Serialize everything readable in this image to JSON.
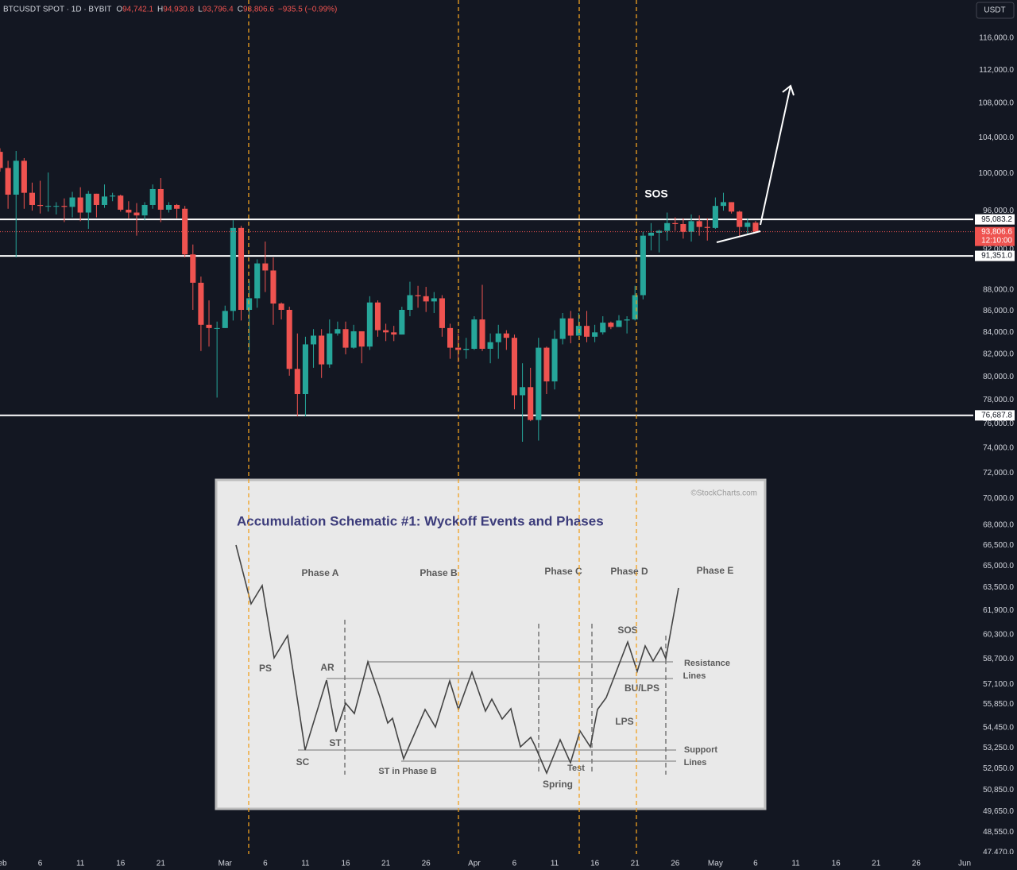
{
  "chart_data": {
    "type": "candlestick",
    "header": {
      "symbol": "BTCUSDT SPOT · 1D · BYBIT",
      "ohlc": [
        {
          "key": "O",
          "text": "94,742.1"
        },
        {
          "key": "H",
          "text": "94,930.8"
        },
        {
          "key": "L",
          "text": "93,796.4"
        },
        {
          "key": "C",
          "text": "93,806.6"
        }
      ],
      "change": "−935.5 (−0.99%)"
    },
    "currency": "USDT",
    "annotation": "SOS",
    "x": [
      "Feb 1",
      "Feb 2",
      "Feb 3",
      "Feb 4",
      "Feb 5",
      "Feb 6",
      "Feb 7",
      "Feb 8",
      "Feb 9",
      "Feb 10",
      "Feb 11",
      "Feb 12",
      "Feb 13",
      "Feb 14",
      "Feb 15",
      "Feb 16",
      "Feb 17",
      "Feb 18",
      "Feb 19",
      "Feb 20",
      "Feb 21",
      "Feb 22",
      "Feb 23",
      "Feb 24",
      "Feb 25",
      "Feb 26",
      "Feb 27",
      "Feb 28",
      "Mar 1",
      "Mar 2",
      "Mar 3",
      "Mar 4",
      "Mar 5",
      "Mar 6",
      "Mar 7",
      "Mar 8",
      "Mar 9",
      "Mar 10",
      "Mar 11",
      "Mar 12",
      "Mar 13",
      "Mar 14",
      "Mar 15",
      "Mar 16",
      "Mar 17",
      "Mar 18",
      "Mar 19",
      "Mar 20",
      "Mar 21",
      "Mar 22",
      "Mar 23",
      "Mar 24",
      "Mar 25",
      "Mar 26",
      "Mar 27",
      "Mar 28",
      "Mar 29",
      "Mar 30",
      "Mar 31",
      "Apr 1",
      "Apr 2",
      "Apr 3",
      "Apr 4",
      "Apr 5",
      "Apr 6",
      "Apr 7",
      "Apr 8",
      "Apr 9",
      "Apr 10",
      "Apr 11",
      "Apr 12",
      "Apr 13",
      "Apr 14",
      "Apr 15",
      "Apr 16",
      "Apr 17",
      "Apr 18",
      "Apr 19",
      "Apr 20",
      "Apr 21",
      "Apr 22",
      "Apr 23",
      "Apr 24",
      "Apr 25",
      "Apr 26",
      "Apr 27",
      "Apr 28",
      "Apr 29",
      "Apr 30",
      "May 1",
      "May 2",
      "May 3",
      "May 4",
      "May 5",
      "May 6"
    ],
    "open": [
      102400,
      100600,
      97700,
      101400,
      97900,
      96600,
      96500,
      96500,
      96500,
      96400,
      97400,
      95800,
      97800,
      96600,
      97500,
      97600,
      96100,
      95800,
      95500,
      96600,
      98300,
      96100,
      96600,
      96200,
      91500,
      88700,
      84700,
      84400,
      84400,
      86000,
      94200,
      86100,
      87200,
      90600,
      89900,
      86700,
      86100,
      80700,
      78500,
      82900,
      83700,
      81100,
      83900,
      84300,
      82600,
      84100,
      82700,
      86800,
      84200,
      84000,
      83800,
      86100,
      87500,
      87400,
      86900,
      87200,
      84400,
      82600,
      82400,
      82500,
      85200,
      82500,
      83100,
      83900,
      83500,
      78400,
      79100,
      76300,
      82600,
      79600,
      83400,
      85300,
      83700,
      84600,
      83600,
      84000,
      84900,
      84500,
      85100,
      85200,
      87500,
      93400,
      93700,
      93900,
      94700,
      94600,
      93800,
      94900,
      94300,
      94200,
      96500,
      96900,
      95900,
      94300,
      94742.1
    ],
    "high": [
      102800,
      101400,
      102500,
      101700,
      99000,
      99200,
      100100,
      96900,
      97300,
      98000,
      98500,
      98100,
      97800,
      98800,
      97900,
      97700,
      97000,
      96800,
      96900,
      98800,
      99500,
      96900,
      96700,
      96500,
      92500,
      89300,
      87000,
      85000,
      86500,
      95000,
      94400,
      88900,
      91000,
      92800,
      91200,
      86800,
      86400,
      83900,
      83600,
      84300,
      84300,
      85200,
      85000,
      85000,
      84700,
      84100,
      87400,
      87000,
      84800,
      84600,
      86400,
      88800,
      88400,
      88300,
      87800,
      87500,
      84800,
      83900,
      83500,
      85500,
      88500,
      83900,
      84700,
      84200,
      83800,
      81200,
      80800,
      83500,
      82700,
      84200,
      85800,
      86000,
      85800,
      86000,
      84700,
      85500,
      85000,
      85600,
      85500,
      88400,
      93800,
      94700,
      94000,
      95800,
      95300,
      95200,
      95600,
      95500,
      95200,
      97400,
      97900,
      96900,
      96000,
      95200,
      94930.8
    ],
    "low": [
      100200,
      96200,
      91200,
      96200,
      96000,
      95700,
      95900,
      95600,
      94800,
      95300,
      94900,
      94100,
      95300,
      96300,
      97000,
      95900,
      95200,
      93400,
      95000,
      96200,
      94800,
      95800,
      95200,
      91200,
      86100,
      82300,
      82700,
      78200,
      84400,
      85100,
      85100,
      82200,
      86300,
      87800,
      84700,
      85200,
      80100,
      76600,
      76600,
      80800,
      79900,
      80800,
      83700,
      82000,
      82500,
      81200,
      82400,
      83600,
      83200,
      83200,
      83800,
      85500,
      86300,
      85900,
      85800,
      83600,
      81600,
      81300,
      81600,
      82400,
      82300,
      81200,
      81600,
      82400,
      77200,
      74500,
      76200,
      74600,
      78500,
      78900,
      82900,
      83000,
      83700,
      83100,
      83100,
      83800,
      84300,
      84500,
      83900,
      85100,
      87100,
      91900,
      91700,
      92900,
      93900,
      93100,
      92800,
      93400,
      92900,
      94100,
      96000,
      95700,
      93300,
      93600,
      93796.4
    ],
    "close": [
      100600,
      97700,
      101400,
      97900,
      96600,
      96500,
      96500,
      96500,
      96400,
      97400,
      95800,
      97800,
      96600,
      97500,
      97600,
      96100,
      95800,
      95500,
      96600,
      98300,
      96100,
      96600,
      96200,
      91500,
      88700,
      84700,
      84400,
      84400,
      86000,
      94200,
      86100,
      87200,
      90600,
      89900,
      86700,
      86100,
      80700,
      78500,
      82900,
      83700,
      81100,
      83900,
      84300,
      82600,
      84100,
      82700,
      86800,
      84200,
      84000,
      83800,
      86100,
      87500,
      87400,
      86900,
      87200,
      84400,
      82600,
      82400,
      82500,
      85200,
      82500,
      83100,
      83900,
      83500,
      78400,
      79100,
      76300,
      82600,
      79600,
      83400,
      85300,
      83700,
      84600,
      83600,
      84000,
      84900,
      84500,
      85100,
      85200,
      87500,
      93400,
      93700,
      93900,
      94700,
      94600,
      93800,
      94900,
      94300,
      94200,
      96500,
      96900,
      95900,
      94300,
      94742.1,
      93806.6
    ],
    "up_color": "#26a69a",
    "down_color": "#ef5350",
    "log_scale": true,
    "grid": false,
    "xlim": [
      "Feb 1",
      "Jun 1"
    ],
    "xticks": [
      {
        "value": "Feb 1",
        "label": "Feb"
      },
      {
        "value": "Feb 6",
        "label": "6"
      },
      {
        "value": "Feb 11",
        "label": "11"
      },
      {
        "value": "Feb 16",
        "label": "16"
      },
      {
        "value": "Feb 21",
        "label": "21"
      },
      {
        "value": "Mar 1",
        "label": "Mar"
      },
      {
        "value": "Mar 6",
        "label": "6"
      },
      {
        "value": "Mar 11",
        "label": "11"
      },
      {
        "value": "Mar 16",
        "label": "16"
      },
      {
        "value": "Mar 21",
        "label": "21"
      },
      {
        "value": "Mar 26",
        "label": "26"
      },
      {
        "value": "Apr 1",
        "label": "Apr"
      },
      {
        "value": "Apr 6",
        "label": "6"
      },
      {
        "value": "Apr 11",
        "label": "11"
      },
      {
        "value": "Apr 16",
        "label": "16"
      },
      {
        "value": "Apr 21",
        "label": "21"
      },
      {
        "value": "Apr 26",
        "label": "26"
      },
      {
        "value": "May 1",
        "label": "May"
      },
      {
        "value": "May 6",
        "label": "6"
      },
      {
        "value": "May 11",
        "label": "11"
      },
      {
        "value": "May 16",
        "label": "16"
      },
      {
        "value": "May 21",
        "label": "21"
      },
      {
        "value": "May 26",
        "label": "26"
      },
      {
        "value": "Jun 1",
        "label": "Jun"
      }
    ],
    "ylim": [
      47390,
      120960
    ],
    "yticks": [
      {
        "value": 116000,
        "label": "116,000.0"
      },
      {
        "value": 112000,
        "label": "112,000.0"
      },
      {
        "value": 108000,
        "label": "108,000.0"
      },
      {
        "value": 104000,
        "label": "104,000.0"
      },
      {
        "value": 100000,
        "label": "100,000.0"
      },
      {
        "value": 96000,
        "label": "96,000.0"
      },
      {
        "value": 92000,
        "label": "92,000.0"
      },
      {
        "value": 88000,
        "label": "88,000.0"
      },
      {
        "value": 86000,
        "label": "86,000.0"
      },
      {
        "value": 84000,
        "label": "84,000.0"
      },
      {
        "value": 82000,
        "label": "82,000.0"
      },
      {
        "value": 80000,
        "label": "80,000.0"
      },
      {
        "value": 78000,
        "label": "78,000.0"
      },
      {
        "value": 76000,
        "label": "76,000.0"
      },
      {
        "value": 74000,
        "label": "74,000.0"
      },
      {
        "value": 72000,
        "label": "72,000.0"
      },
      {
        "value": 70000,
        "label": "70,000.0"
      },
      {
        "value": 68000,
        "label": "68,000.0"
      },
      {
        "value": 66500,
        "label": "66,500.0"
      },
      {
        "value": 65000,
        "label": "65,000.0"
      },
      {
        "value": 63500,
        "label": "63,500.0"
      },
      {
        "value": 61900,
        "label": "61,900.0"
      },
      {
        "value": 60300,
        "label": "60,300.0"
      },
      {
        "value": 58700,
        "label": "58,700.0"
      },
      {
        "value": 57100,
        "label": "57,100.0"
      },
      {
        "value": 55850,
        "label": "55,850.0"
      },
      {
        "value": 54450,
        "label": "54,450.0"
      },
      {
        "value": 53250,
        "label": "53,250.0"
      },
      {
        "value": 52050,
        "label": "52,050.0"
      },
      {
        "value": 50850,
        "label": "50,850.0"
      },
      {
        "value": 49650,
        "label": "49,650.0"
      },
      {
        "value": 48550,
        "label": "48,550.0"
      },
      {
        "value": 47470,
        "label": "47,470.0"
      }
    ],
    "levels": [
      {
        "value": 95083.2,
        "label": "95,083.2"
      },
      {
        "value": 91351.0,
        "label": "91,351.0"
      },
      {
        "value": 76687.8,
        "label": "76,687.8"
      }
    ],
    "last_price_label": "93,806.6",
    "countdown": "12:10:00",
    "inset": {
      "credit": "©StockCharts.com",
      "title": "Accumulation Schematic #1: Wyckoff Events and Phases",
      "phases": [
        "Phase A",
        "Phase B",
        "Phase C",
        "Phase D",
        "Phase E"
      ],
      "events": [
        "PS",
        "SC",
        "AR",
        "ST",
        "ST in Phase B",
        "Spring",
        "Test",
        "SOS",
        "BU/LPS",
        "LPS"
      ],
      "resistance": [
        "Resistance",
        "Lines"
      ],
      "support": [
        "Support",
        "Lines"
      ]
    }
  }
}
